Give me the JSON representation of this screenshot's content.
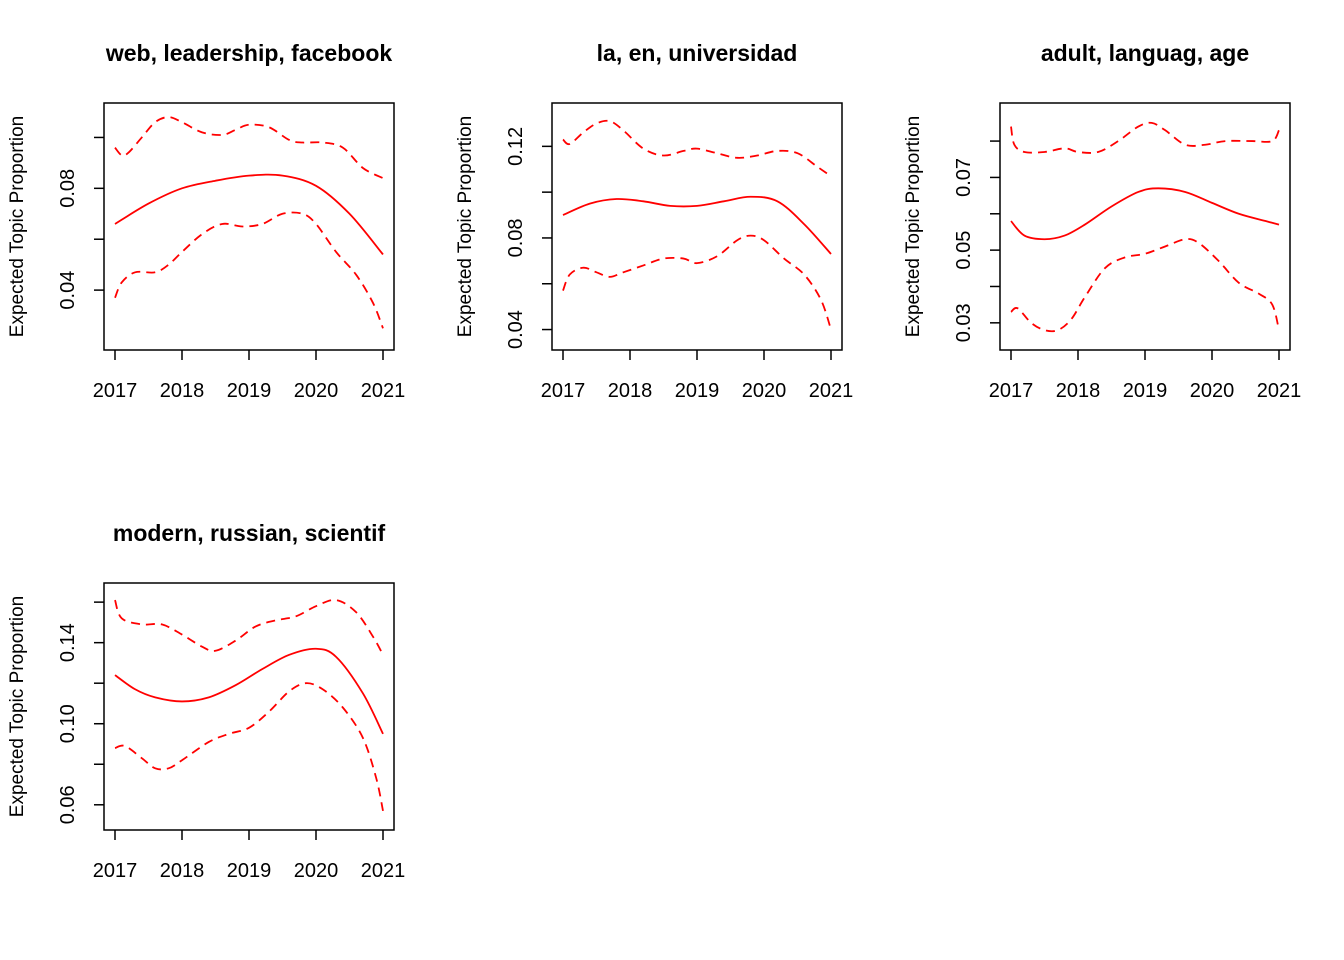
{
  "colors": {
    "series": "#ff0000",
    "axis": "#000000",
    "background": "#ffffff"
  },
  "chart_data": [
    {
      "type": "line",
      "title": "web, leadership, facebook",
      "xlabel": "",
      "ylabel": "Expected Topic Proportion",
      "xlim": [
        2017,
        2021
      ],
      "ylim": [
        0.02,
        0.11
      ],
      "x_ticks": [
        "2017",
        "2018",
        "2019",
        "2020",
        "2021"
      ],
      "y_ticks": [
        "0.04",
        "0.08"
      ],
      "minor_y_ticks": [
        0.04,
        0.06,
        0.08,
        0.1
      ],
      "grid": false,
      "legend": "none",
      "series": [
        {
          "style": "solid",
          "points": [
            [
              2017,
              0.066
            ],
            [
              2017.5,
              0.074
            ],
            [
              2018,
              0.08
            ],
            [
              2018.5,
              0.083
            ],
            [
              2019,
              0.085
            ],
            [
              2019.5,
              0.085
            ],
            [
              2020,
              0.081
            ],
            [
              2020.5,
              0.07
            ],
            [
              2021,
              0.054
            ]
          ]
        },
        {
          "style": "dashed",
          "points": [
            [
              2017,
              0.096
            ],
            [
              2017.1,
              0.093
            ],
            [
              2017.2,
              0.094
            ],
            [
              2017.4,
              0.1
            ],
            [
              2017.6,
              0.106
            ],
            [
              2017.8,
              0.108
            ],
            [
              2018,
              0.106
            ],
            [
              2018.3,
              0.102
            ],
            [
              2018.6,
              0.101
            ],
            [
              2018.8,
              0.103
            ],
            [
              2019,
              0.105
            ],
            [
              2019.3,
              0.104
            ],
            [
              2019.6,
              0.099
            ],
            [
              2019.8,
              0.098
            ],
            [
              2020.1,
              0.098
            ],
            [
              2020.4,
              0.096
            ],
            [
              2020.7,
              0.088
            ],
            [
              2021,
              0.084
            ]
          ]
        },
        {
          "style": "dashed",
          "points": [
            [
              2017,
              0.037
            ],
            [
              2017.1,
              0.043
            ],
            [
              2017.3,
              0.047
            ],
            [
              2017.6,
              0.047
            ],
            [
              2017.8,
              0.05
            ],
            [
              2018,
              0.055
            ],
            [
              2018.3,
              0.062
            ],
            [
              2018.6,
              0.066
            ],
            [
              2018.9,
              0.065
            ],
            [
              2019.2,
              0.066
            ],
            [
              2019.5,
              0.07
            ],
            [
              2019.8,
              0.07
            ],
            [
              2020,
              0.066
            ],
            [
              2020.3,
              0.055
            ],
            [
              2020.6,
              0.046
            ],
            [
              2020.85,
              0.035
            ],
            [
              2021,
              0.025
            ]
          ]
        }
      ]
    },
    {
      "type": "line",
      "title": "la, en, universidad",
      "xlabel": "",
      "ylabel": "Expected Topic Proportion",
      "xlim": [
        2017,
        2021
      ],
      "ylim": [
        0.035,
        0.135
      ],
      "x_ticks": [
        "2017",
        "2018",
        "2019",
        "2020",
        "2021"
      ],
      "y_ticks": [
        "0.04",
        "0.08",
        "0.12"
      ],
      "minor_y_ticks": [
        0.04,
        0.06,
        0.08,
        0.1,
        0.12
      ],
      "grid": false,
      "legend": "none",
      "series": [
        {
          "style": "solid",
          "points": [
            [
              2017,
              0.09
            ],
            [
              2017.4,
              0.095
            ],
            [
              2017.8,
              0.097
            ],
            [
              2018.2,
              0.096
            ],
            [
              2018.6,
              0.094
            ],
            [
              2019,
              0.094
            ],
            [
              2019.4,
              0.096
            ],
            [
              2019.8,
              0.098
            ],
            [
              2020.2,
              0.096
            ],
            [
              2020.6,
              0.086
            ],
            [
              2021,
              0.073
            ]
          ]
        },
        {
          "style": "dashed",
          "points": [
            [
              2017,
              0.123
            ],
            [
              2017.1,
              0.121
            ],
            [
              2017.3,
              0.126
            ],
            [
              2017.5,
              0.13
            ],
            [
              2017.7,
              0.131
            ],
            [
              2017.9,
              0.127
            ],
            [
              2018.2,
              0.119
            ],
            [
              2018.5,
              0.116
            ],
            [
              2018.8,
              0.118
            ],
            [
              2019,
              0.119
            ],
            [
              2019.3,
              0.117
            ],
            [
              2019.6,
              0.115
            ],
            [
              2019.9,
              0.116
            ],
            [
              2020.2,
              0.118
            ],
            [
              2020.5,
              0.117
            ],
            [
              2020.8,
              0.111
            ],
            [
              2021,
              0.107
            ]
          ]
        },
        {
          "style": "dashed",
          "points": [
            [
              2017,
              0.057
            ],
            [
              2017.1,
              0.064
            ],
            [
              2017.3,
              0.067
            ],
            [
              2017.5,
              0.065
            ],
            [
              2017.7,
              0.063
            ],
            [
              2017.9,
              0.065
            ],
            [
              2018.2,
              0.068
            ],
            [
              2018.5,
              0.071
            ],
            [
              2018.8,
              0.071
            ],
            [
              2019,
              0.069
            ],
            [
              2019.3,
              0.072
            ],
            [
              2019.6,
              0.079
            ],
            [
              2019.8,
              0.081
            ],
            [
              2020,
              0.079
            ],
            [
              2020.3,
              0.071
            ],
            [
              2020.6,
              0.064
            ],
            [
              2020.85,
              0.053
            ],
            [
              2021,
              0.04
            ]
          ]
        }
      ]
    },
    {
      "type": "line",
      "title": "adult, languag, age",
      "xlabel": "",
      "ylabel": "Expected Topic Proportion",
      "xlim": [
        2017,
        2021
      ],
      "ylim": [
        0.025,
        0.088
      ],
      "x_ticks": [
        "2017",
        "2018",
        "2019",
        "2020",
        "2021"
      ],
      "y_ticks": [
        "0.03",
        "0.05",
        "0.07"
      ],
      "minor_y_ticks": [
        0.03,
        0.04,
        0.05,
        0.06,
        0.07,
        0.08
      ],
      "grid": false,
      "legend": "none",
      "series": [
        {
          "style": "solid",
          "points": [
            [
              2017,
              0.058
            ],
            [
              2017.2,
              0.054
            ],
            [
              2017.5,
              0.053
            ],
            [
              2017.8,
              0.054
            ],
            [
              2018.1,
              0.057
            ],
            [
              2018.5,
              0.062
            ],
            [
              2018.9,
              0.066
            ],
            [
              2019.2,
              0.067
            ],
            [
              2019.6,
              0.066
            ],
            [
              2020,
              0.063
            ],
            [
              2020.4,
              0.06
            ],
            [
              2020.8,
              0.058
            ],
            [
              2021,
              0.057
            ]
          ]
        },
        {
          "style": "dashed",
          "points": [
            [
              2017,
              0.084
            ],
            [
              2017.05,
              0.079
            ],
            [
              2017.2,
              0.077
            ],
            [
              2017.5,
              0.077
            ],
            [
              2017.8,
              0.078
            ],
            [
              2018,
              0.077
            ],
            [
              2018.3,
              0.077
            ],
            [
              2018.6,
              0.08
            ],
            [
              2018.9,
              0.084
            ],
            [
              2019.1,
              0.085
            ],
            [
              2019.3,
              0.083
            ],
            [
              2019.6,
              0.079
            ],
            [
              2019.9,
              0.079
            ],
            [
              2020.2,
              0.08
            ],
            [
              2020.6,
              0.08
            ],
            [
              2020.9,
              0.08
            ],
            [
              2021,
              0.083
            ]
          ]
        },
        {
          "style": "dashed",
          "points": [
            [
              2017,
              0.033
            ],
            [
              2017.1,
              0.034
            ],
            [
              2017.3,
              0.03
            ],
            [
              2017.5,
              0.028
            ],
            [
              2017.7,
              0.028
            ],
            [
              2017.9,
              0.031
            ],
            [
              2018.1,
              0.037
            ],
            [
              2018.4,
              0.045
            ],
            [
              2018.7,
              0.048
            ],
            [
              2019,
              0.049
            ],
            [
              2019.3,
              0.051
            ],
            [
              2019.6,
              0.053
            ],
            [
              2019.8,
              0.052
            ],
            [
              2020.1,
              0.047
            ],
            [
              2020.4,
              0.041
            ],
            [
              2020.7,
              0.038
            ],
            [
              2020.9,
              0.035
            ],
            [
              2021,
              0.028
            ]
          ]
        }
      ]
    },
    {
      "type": "line",
      "title": "modern, russian, scientif",
      "xlabel": "",
      "ylabel": "Expected Topic Proportion",
      "xlim": [
        2017,
        2021
      ],
      "ylim": [
        0.052,
        0.165
      ],
      "x_ticks": [
        "2017",
        "2018",
        "2019",
        "2020",
        "2021"
      ],
      "y_ticks": [
        "0.06",
        "0.10",
        "0.14"
      ],
      "minor_y_ticks": [
        0.06,
        0.08,
        0.1,
        0.12,
        0.14,
        0.16
      ],
      "grid": false,
      "legend": "none",
      "series": [
        {
          "style": "solid",
          "points": [
            [
              2017,
              0.124
            ],
            [
              2017.3,
              0.117
            ],
            [
              2017.6,
              0.113
            ],
            [
              2018,
              0.111
            ],
            [
              2018.4,
              0.113
            ],
            [
              2018.8,
              0.119
            ],
            [
              2019.2,
              0.127
            ],
            [
              2019.6,
              0.134
            ],
            [
              2020,
              0.137
            ],
            [
              2020.3,
              0.133
            ],
            [
              2020.7,
              0.115
            ],
            [
              2021,
              0.095
            ]
          ]
        },
        {
          "style": "dashed",
          "points": [
            [
              2017,
              0.161
            ],
            [
              2017.1,
              0.152
            ],
            [
              2017.4,
              0.149
            ],
            [
              2017.7,
              0.149
            ],
            [
              2018,
              0.144
            ],
            [
              2018.3,
              0.138
            ],
            [
              2018.5,
              0.136
            ],
            [
              2018.8,
              0.141
            ],
            [
              2019.1,
              0.148
            ],
            [
              2019.4,
              0.151
            ],
            [
              2019.7,
              0.153
            ],
            [
              2020,
              0.158
            ],
            [
              2020.3,
              0.161
            ],
            [
              2020.6,
              0.155
            ],
            [
              2020.85,
              0.143
            ],
            [
              2021,
              0.134
            ]
          ]
        },
        {
          "style": "dashed",
          "points": [
            [
              2017,
              0.088
            ],
            [
              2017.15,
              0.089
            ],
            [
              2017.4,
              0.083
            ],
            [
              2017.6,
              0.078
            ],
            [
              2017.8,
              0.078
            ],
            [
              2018,
              0.082
            ],
            [
              2018.4,
              0.091
            ],
            [
              2018.7,
              0.095
            ],
            [
              2019,
              0.098
            ],
            [
              2019.3,
              0.106
            ],
            [
              2019.6,
              0.116
            ],
            [
              2019.85,
              0.12
            ],
            [
              2020.1,
              0.117
            ],
            [
              2020.4,
              0.108
            ],
            [
              2020.7,
              0.093
            ],
            [
              2020.9,
              0.073
            ],
            [
              2021,
              0.057
            ]
          ]
        }
      ]
    }
  ]
}
